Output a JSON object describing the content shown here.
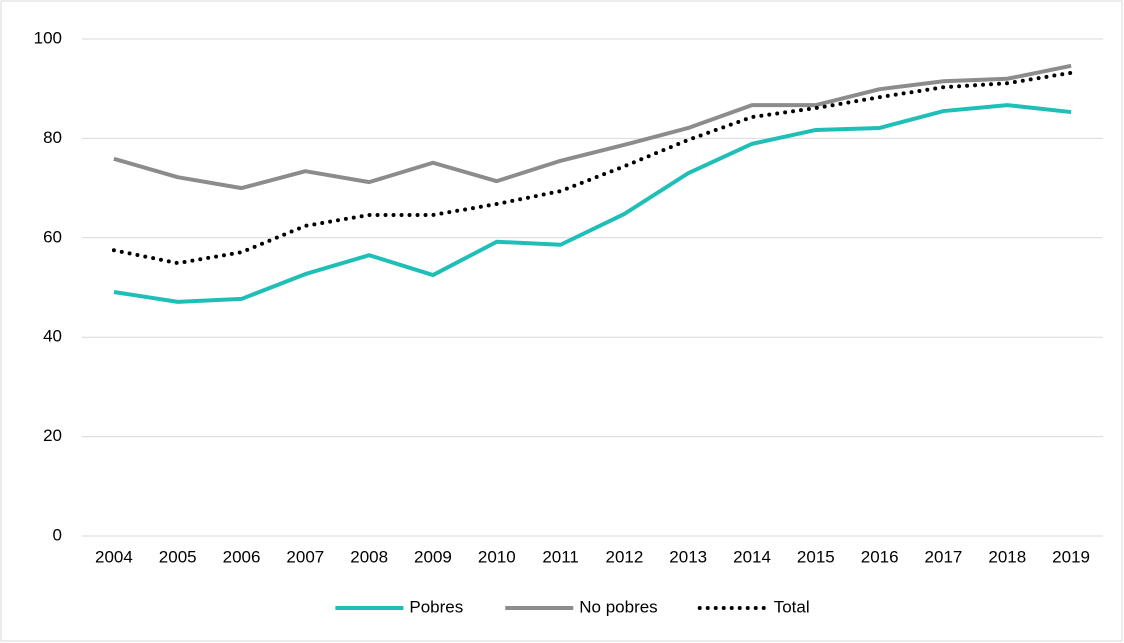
{
  "chart_data": {
    "type": "line",
    "categories": [
      "2004",
      "2005",
      "2006",
      "2007",
      "2008",
      "2009",
      "2010",
      "2011",
      "2012",
      "2013",
      "2014",
      "2015",
      "2016",
      "2017",
      "2018",
      "2019"
    ],
    "series": [
      {
        "name": "Pobres",
        "color": "#1fbfb8",
        "line_style": "solid",
        "values": [
          49.1,
          47.1,
          47.7,
          52.7,
          56.5,
          52.5,
          59.2,
          58.6,
          64.8,
          73.0,
          78.9,
          81.7,
          82.1,
          85.5,
          86.7,
          85.3
        ]
      },
      {
        "name": "No pobres",
        "color": "#8c8c8c",
        "line_style": "solid",
        "values": [
          75.9,
          72.2,
          70.0,
          73.4,
          71.2,
          75.1,
          71.4,
          75.5,
          78.7,
          82.1,
          86.7,
          86.7,
          89.9,
          91.5,
          92.0,
          94.6
        ]
      },
      {
        "name": "Total",
        "color": "#000000",
        "line_style": "dotted",
        "values": [
          57.5,
          54.9,
          57.1,
          62.4,
          64.6,
          64.6,
          66.8,
          69.4,
          74.4,
          79.7,
          84.3,
          86.1,
          88.3,
          90.3,
          91.1,
          93.2
        ]
      }
    ],
    "ylim": [
      0,
      100
    ],
    "yticks": [
      0,
      20,
      40,
      60,
      80,
      100
    ],
    "grid": true,
    "legend": "bottom"
  }
}
